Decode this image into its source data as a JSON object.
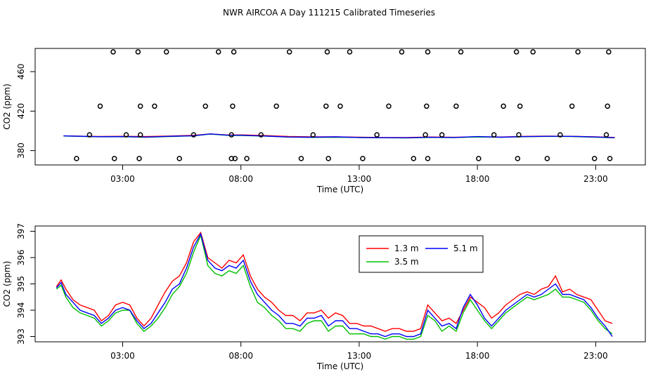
{
  "figure": {
    "title": "NWR AIRCOA A  Day 111215  Calibrated Timeseries"
  },
  "chart_data": [
    {
      "type": "line",
      "name": "top-panel",
      "title": "",
      "xlabel": "Time (UTC)",
      "ylabel": "CO2 (ppm)",
      "x_units": "hours UTC",
      "xlim": [
        -0.7,
        25.1
      ],
      "ylim": [
        365.5,
        483.5
      ],
      "xticks": [
        3,
        8,
        13,
        18,
        23
      ],
      "xtick_labels": [
        "03:00",
        "08:00",
        "13:00",
        "18:00",
        "23:00"
      ],
      "yticks": [
        380,
        420,
        460
      ],
      "ytick_labels": [
        "380",
        "420",
        "460"
      ],
      "series": [
        {
          "name": "1.3 m",
          "color": "#ff0000",
          "x": [
            0.5,
            2,
            3,
            4,
            5,
            6,
            6.7,
            7.5,
            8,
            9,
            10,
            11,
            12,
            13,
            14,
            15,
            16,
            17,
            18,
            19,
            20,
            21,
            22,
            23,
            23.8
          ],
          "y": [
            394.9,
            394.3,
            394.5,
            394.2,
            394.8,
            395.5,
            396.9,
            395.7,
            395.9,
            395.3,
            394.3,
            393.9,
            394.0,
            393.6,
            393.3,
            393.2,
            393.8,
            393.5,
            394.0,
            393.8,
            394.4,
            394.7,
            394.5,
            394.0,
            393.4
          ]
        },
        {
          "name": "3.5 m",
          "color": "#00c000",
          "x": [
            0.5,
            2,
            3,
            4,
            5,
            6,
            6.7,
            7.5,
            8,
            9,
            10,
            11,
            12,
            13,
            14,
            15,
            16,
            17,
            18,
            19,
            20,
            21,
            22,
            23,
            23.8
          ],
          "y": [
            394.8,
            394.0,
            394.1,
            393.5,
            394.3,
            394.9,
            396.8,
            395.3,
            395.3,
            394.7,
            393.7,
            393.4,
            393.6,
            393.2,
            393.0,
            392.8,
            393.4,
            393.2,
            393.8,
            393.5,
            394.1,
            394.4,
            394.2,
            393.6,
            393.0
          ]
        },
        {
          "name": "5.1 m",
          "color": "#0000ff",
          "x": [
            0.5,
            2,
            3,
            4,
            5,
            6,
            6.7,
            7.5,
            8,
            9,
            10,
            11,
            12,
            13,
            14,
            15,
            16,
            17,
            18,
            19,
            20,
            21,
            22,
            23,
            23.8
          ],
          "y": [
            394.9,
            394.1,
            394.2,
            393.7,
            394.5,
            395.1,
            396.9,
            395.6,
            395.6,
            394.8,
            393.8,
            393.6,
            393.9,
            393.3,
            393.1,
            393.0,
            393.5,
            393.3,
            394.2,
            393.6,
            394.2,
            394.5,
            394.4,
            393.8,
            393.1
          ]
        }
      ],
      "scatter": {
        "name": "calibration flags",
        "color": "#000000",
        "x": [
          1.05,
          1.6,
          2.05,
          2.6,
          2.65,
          3.15,
          3.65,
          3.7,
          3.75,
          3.75,
          4.35,
          4.85,
          5.4,
          6.0,
          6.5,
          7.05,
          7.6,
          7.6,
          7.65,
          7.7,
          7.75,
          8.25,
          8.85,
          9.5,
          10.05,
          10.55,
          11.05,
          11.6,
          11.65,
          11.7,
          12.2,
          12.6,
          13.15,
          13.75,
          14.25,
          14.8,
          15.3,
          15.8,
          15.85,
          15.9,
          15.9,
          16.5,
          17.1,
          17.3,
          18.05,
          18.7,
          19.1,
          19.65,
          19.7,
          19.75,
          19.8,
          20.35,
          20.95,
          21.5,
          22.0,
          22.25,
          22.95,
          23.45,
          23.5,
          23.55,
          23.6
        ],
        "y": [
          372,
          396,
          425,
          480,
          372,
          396,
          480,
          372,
          396,
          425,
          425,
          480,
          372,
          396,
          425,
          480,
          372,
          396,
          425,
          480,
          372,
          372,
          396,
          425,
          480,
          372,
          396,
          425,
          480,
          372,
          425,
          480,
          372,
          396,
          425,
          480,
          372,
          396,
          425,
          480,
          372,
          396,
          425,
          480,
          372,
          396,
          425,
          480,
          372,
          396,
          425,
          480,
          372,
          396,
          425,
          480,
          372,
          396,
          425,
          480,
          372
        ]
      }
    },
    {
      "type": "line",
      "name": "bottom-panel",
      "title": "",
      "xlabel": "Time (UTC)",
      "ylabel": "CO2 (ppm)",
      "x_units": "hours UTC",
      "xlim": [
        -0.7,
        25.1
      ],
      "ylim": [
        392.8,
        397.2
      ],
      "xticks": [
        3,
        8,
        13,
        18,
        23
      ],
      "xtick_labels": [
        "03:00",
        "08:00",
        "13:00",
        "18:00",
        "23:00"
      ],
      "yticks": [
        393,
        394,
        395,
        396,
        397
      ],
      "ytick_labels": [
        "393",
        "394",
        "395",
        "396",
        "397"
      ],
      "legend": {
        "placement": "top-right"
      },
      "series": [
        {
          "name": "1.3 m",
          "color": "#ff0000",
          "x": [
            0.2,
            0.4,
            0.6,
            0.9,
            1.2,
            1.5,
            1.8,
            2.1,
            2.4,
            2.7,
            3.0,
            3.3,
            3.6,
            3.9,
            4.2,
            4.5,
            4.8,
            5.1,
            5.4,
            5.7,
            6.0,
            6.3,
            6.6,
            6.9,
            7.2,
            7.5,
            7.8,
            8.1,
            8.4,
            8.7,
            9.0,
            9.3,
            9.6,
            9.9,
            10.2,
            10.5,
            10.8,
            11.1,
            11.4,
            11.7,
            12.0,
            12.3,
            12.6,
            12.9,
            13.2,
            13.5,
            13.8,
            14.1,
            14.4,
            14.7,
            15.0,
            15.3,
            15.6,
            15.9,
            16.2,
            16.5,
            16.8,
            17.1,
            17.4,
            17.7,
            18.0,
            18.3,
            18.6,
            18.9,
            19.2,
            19.5,
            19.8,
            20.1,
            20.4,
            20.7,
            21.0,
            21.3,
            21.6,
            21.9,
            22.2,
            22.5,
            22.8,
            23.1,
            23.4,
            23.7
          ],
          "y": [
            394.9,
            395.15,
            394.8,
            394.4,
            394.2,
            394.1,
            394.0,
            393.6,
            393.8,
            394.2,
            394.3,
            394.2,
            393.7,
            393.4,
            393.7,
            394.2,
            394.7,
            395.1,
            395.3,
            395.8,
            396.6,
            396.95,
            396.0,
            395.8,
            395.6,
            395.9,
            395.8,
            396.1,
            395.3,
            394.8,
            394.5,
            394.3,
            394.0,
            393.8,
            393.8,
            393.6,
            393.9,
            393.9,
            394.0,
            393.7,
            393.9,
            393.8,
            393.5,
            393.5,
            393.4,
            393.4,
            393.3,
            393.2,
            393.3,
            393.3,
            393.2,
            393.2,
            393.3,
            394.2,
            393.9,
            393.6,
            393.7,
            393.5,
            394.0,
            394.5,
            394.3,
            394.1,
            393.7,
            393.9,
            394.2,
            394.4,
            394.6,
            394.7,
            394.6,
            394.8,
            394.9,
            395.3,
            394.7,
            394.8,
            394.6,
            394.5,
            394.4,
            394.0,
            393.6,
            393.5
          ]
        },
        {
          "name": "3.5 m",
          "color": "#00c000",
          "x": [
            0.2,
            0.4,
            0.6,
            0.9,
            1.2,
            1.5,
            1.8,
            2.1,
            2.4,
            2.7,
            3.0,
            3.3,
            3.6,
            3.9,
            4.2,
            4.5,
            4.8,
            5.1,
            5.4,
            5.7,
            6.0,
            6.3,
            6.6,
            6.9,
            7.2,
            7.5,
            7.8,
            8.1,
            8.4,
            8.7,
            9.0,
            9.3,
            9.6,
            9.9,
            10.2,
            10.5,
            10.8,
            11.1,
            11.4,
            11.7,
            12.0,
            12.3,
            12.6,
            12.9,
            13.2,
            13.5,
            13.8,
            14.1,
            14.4,
            14.7,
            15.0,
            15.3,
            15.6,
            15.9,
            16.2,
            16.5,
            16.8,
            17.1,
            17.4,
            17.7,
            18.0,
            18.3,
            18.6,
            18.9,
            19.2,
            19.5,
            19.8,
            20.1,
            20.4,
            20.7,
            21.0,
            21.3,
            21.6,
            21.9,
            22.2,
            22.5,
            22.8,
            23.1,
            23.4,
            23.7
          ],
          "y": [
            394.8,
            394.95,
            394.5,
            394.1,
            393.9,
            393.8,
            393.7,
            393.4,
            393.6,
            393.9,
            394.0,
            394.0,
            393.5,
            393.2,
            393.4,
            393.7,
            394.1,
            394.6,
            394.9,
            395.4,
            396.2,
            396.85,
            395.7,
            395.4,
            395.3,
            395.5,
            395.4,
            395.7,
            394.9,
            394.3,
            394.1,
            393.8,
            393.6,
            393.3,
            393.3,
            393.2,
            393.5,
            393.6,
            393.6,
            393.2,
            393.4,
            393.4,
            393.1,
            393.1,
            393.1,
            393.0,
            393.0,
            392.9,
            393.0,
            393.0,
            392.9,
            392.9,
            393.0,
            393.8,
            393.6,
            393.2,
            393.4,
            393.2,
            393.9,
            394.4,
            394.0,
            393.6,
            393.3,
            393.6,
            393.9,
            394.1,
            394.3,
            394.5,
            394.4,
            394.5,
            394.6,
            394.8,
            394.5,
            394.5,
            394.4,
            394.3,
            394.0,
            393.6,
            393.3,
            393.1
          ]
        },
        {
          "name": "5.1 m",
          "color": "#0000ff",
          "x": [
            0.2,
            0.4,
            0.6,
            0.9,
            1.2,
            1.5,
            1.8,
            2.1,
            2.4,
            2.7,
            3.0,
            3.3,
            3.6,
            3.9,
            4.2,
            4.5,
            4.8,
            5.1,
            5.4,
            5.7,
            6.0,
            6.3,
            6.6,
            6.9,
            7.2,
            7.5,
            7.8,
            8.1,
            8.4,
            8.7,
            9.0,
            9.3,
            9.6,
            9.9,
            10.2,
            10.5,
            10.8,
            11.1,
            11.4,
            11.7,
            12.0,
            12.3,
            12.6,
            12.9,
            13.2,
            13.5,
            13.8,
            14.1,
            14.4,
            14.7,
            15.0,
            15.3,
            15.6,
            15.9,
            16.2,
            16.5,
            16.8,
            17.1,
            17.4,
            17.7,
            18.0,
            18.3,
            18.6,
            18.9,
            19.2,
            19.5,
            19.8,
            20.1,
            20.4,
            20.7,
            21.0,
            21.3,
            21.6,
            21.9,
            22.2,
            22.5,
            22.8,
            23.1,
            23.4,
            23.7
          ],
          "y": [
            394.85,
            395.05,
            394.6,
            394.3,
            394.0,
            393.9,
            393.8,
            393.5,
            393.7,
            394.0,
            394.1,
            394.0,
            393.6,
            393.3,
            393.5,
            393.9,
            394.3,
            394.8,
            395.0,
            395.6,
            396.4,
            396.9,
            395.9,
            395.6,
            395.5,
            395.7,
            395.6,
            395.9,
            395.1,
            394.6,
            394.3,
            394.0,
            393.8,
            393.5,
            393.5,
            393.4,
            393.7,
            393.7,
            393.8,
            393.4,
            393.6,
            393.6,
            393.3,
            393.3,
            393.2,
            393.1,
            393.1,
            393.0,
            393.1,
            393.1,
            393.0,
            393.0,
            393.1,
            394.0,
            393.7,
            393.4,
            393.5,
            393.3,
            394.1,
            394.6,
            394.2,
            393.7,
            393.4,
            393.7,
            394.0,
            394.2,
            394.4,
            394.6,
            394.5,
            394.6,
            394.8,
            395.0,
            394.6,
            394.6,
            394.5,
            394.4,
            394.1,
            393.7,
            393.4,
            393.0
          ]
        }
      ]
    }
  ]
}
